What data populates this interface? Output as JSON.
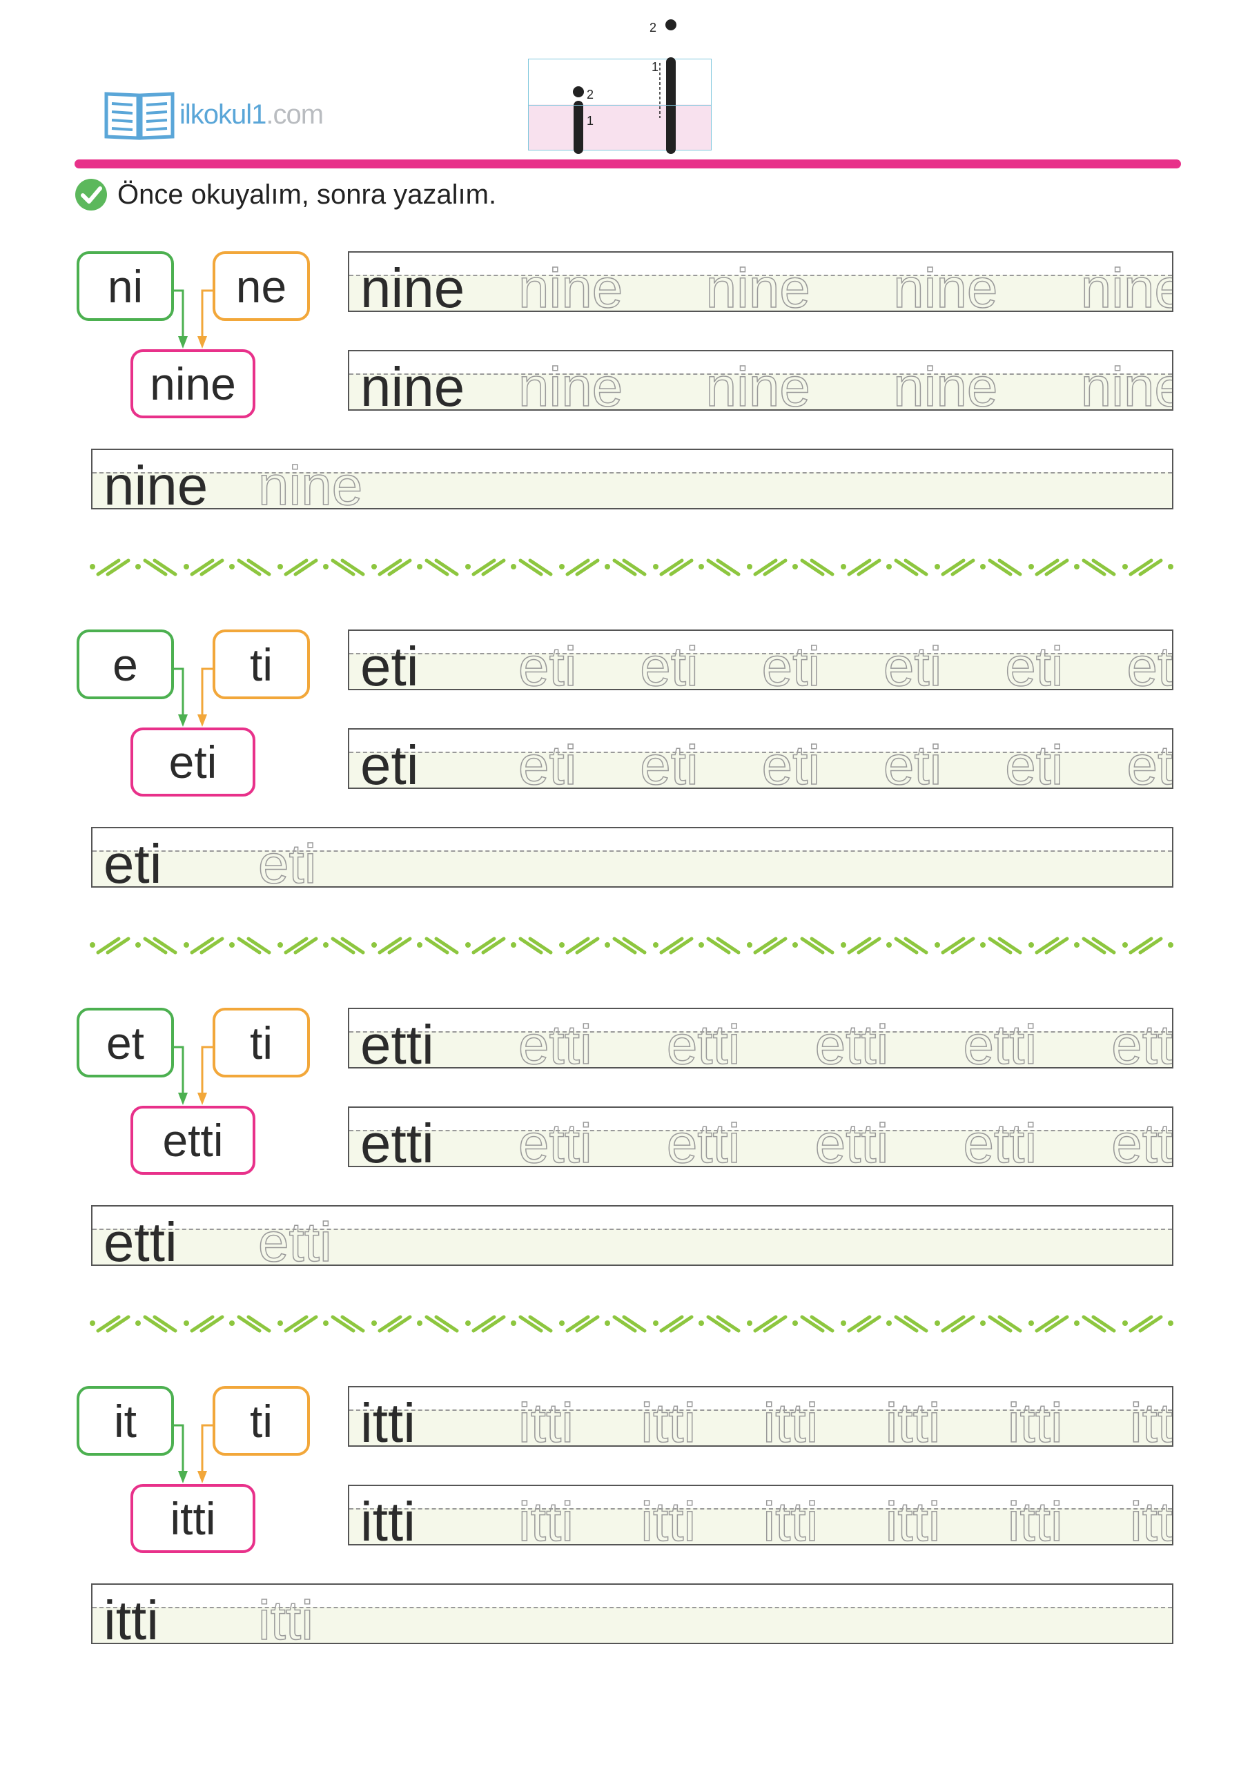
{
  "header": {
    "logo_main": "ilkokul1",
    "logo_domain": ".com",
    "instruction": "Önce okuyalım, sonra yazalım."
  },
  "colors": {
    "pink": "#e8318a",
    "green": "#4cb050",
    "orange": "#f2a73a",
    "divider": "#8dc63f"
  },
  "sections": [
    {
      "part1": "ni",
      "part2": "ne",
      "word": "nine",
      "trace_count": 4
    },
    {
      "part1": "e",
      "part2": "ti",
      "word": "eti",
      "trace_count": 6
    },
    {
      "part1": "et",
      "part2": "ti",
      "word": "etti",
      "trace_count": 5
    },
    {
      "part1": "it",
      "part2": "ti",
      "word": "itti",
      "trace_count": 6
    }
  ]
}
